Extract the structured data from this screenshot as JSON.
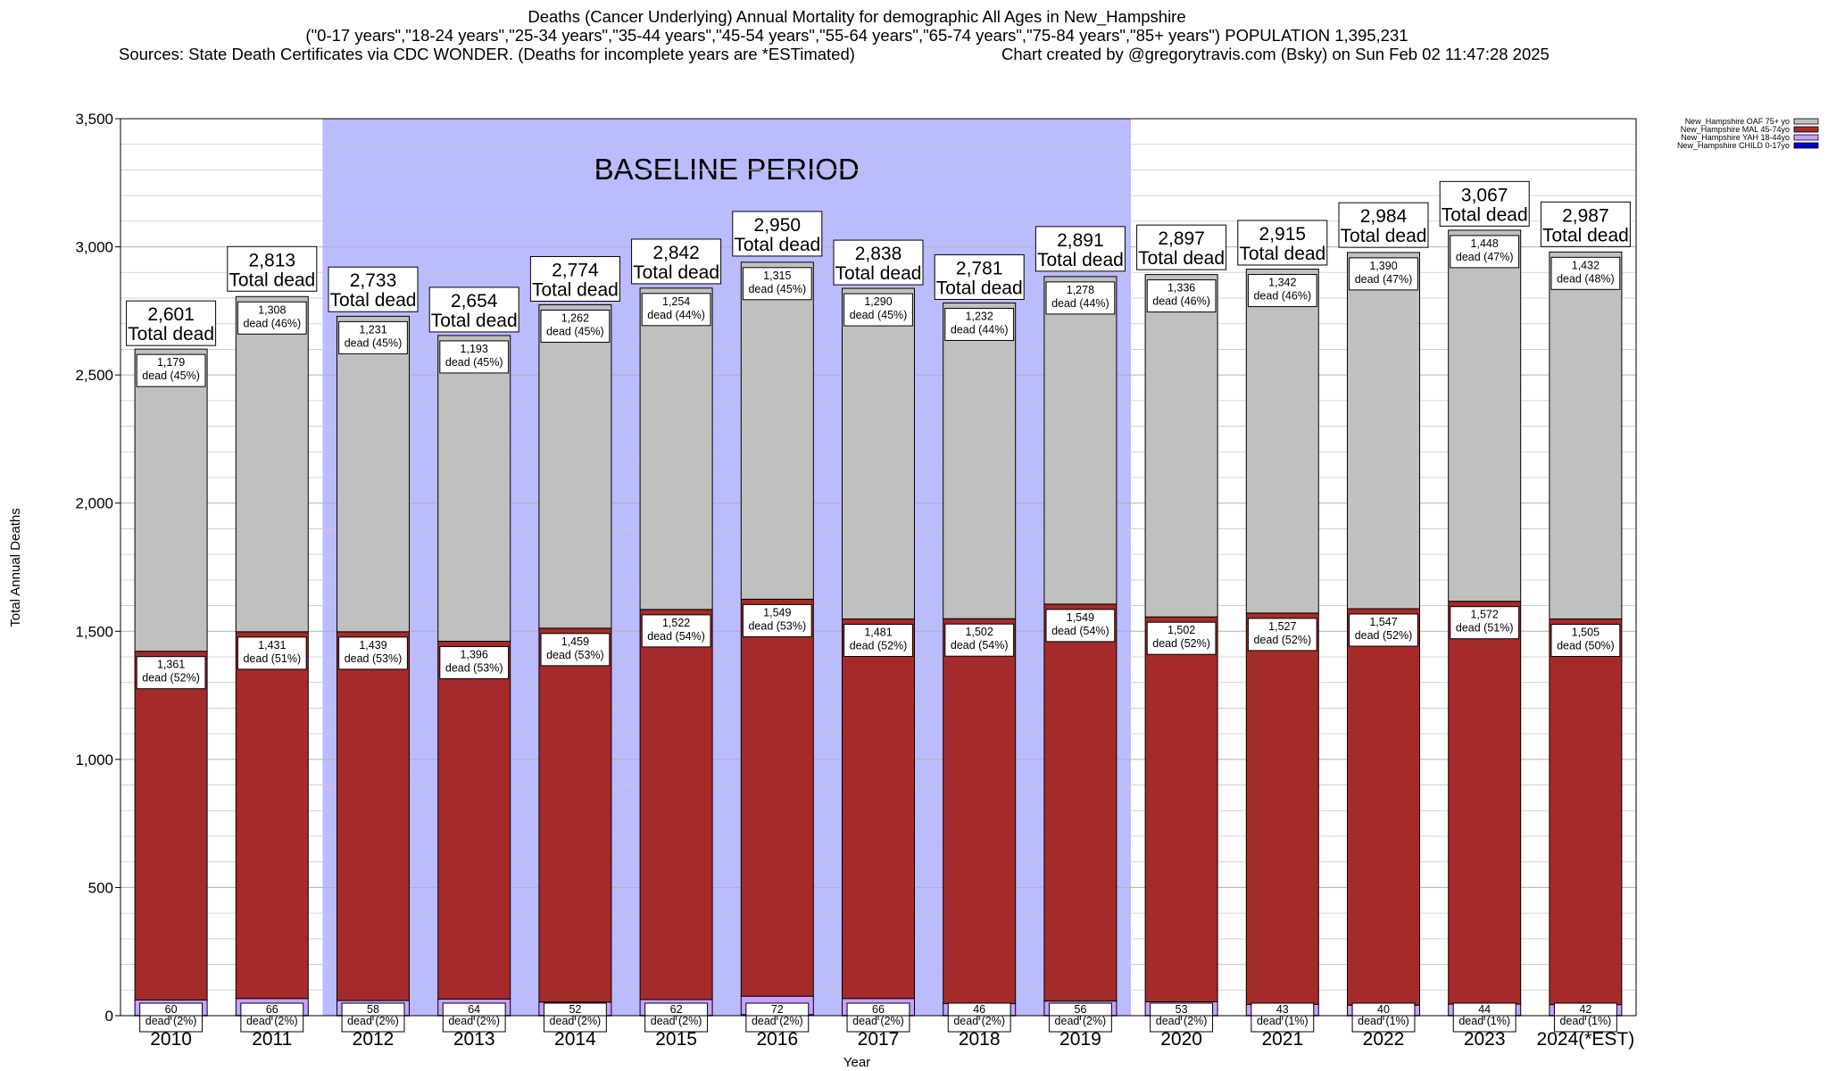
{
  "header": {
    "line1": "Deaths (Cancer Underlying) Annual Mortality for demographic All Ages in New_Hampshire",
    "line2": "(\"0-17 years\",\"18-24 years\",\"25-34 years\",\"35-44 years\",\"45-54 years\",\"55-64 years\",\"65-74 years\",\"75-84 years\",\"85+ years\") POPULATION 1,395,231",
    "line3_left": "Sources: State Death Certificates via CDC WONDER. (Deaths for incomplete years are *ESTimated)",
    "line3_right": "Chart created by @gregorytravis.com (Bsky) on Sun Feb 02 11:47:28 2025"
  },
  "colors": {
    "oaf": "#c0c0c0",
    "mal": "#a52a2a",
    "yah": "#c8a0ff",
    "child": "#0000cc",
    "baseline": "#bbbbff",
    "grid": "#c8c8c8"
  },
  "chart_data": {
    "type": "bar",
    "stacked": true,
    "title": "Deaths (Cancer Underlying) Annual Mortality for demographic All Ages in New_Hampshire",
    "xlabel": "Year",
    "ylabel": "Total Annual Deaths",
    "ylim": [
      0,
      3500
    ],
    "yticks": [
      0,
      500,
      1000,
      1500,
      2000,
      2500,
      3000,
      3500
    ],
    "ytick_labels": [
      "0",
      "500",
      "1,000",
      "1,500",
      "2,000",
      "2,500",
      "3,000",
      "3,500"
    ],
    "grid": true,
    "legend_position": "top-right",
    "categories": [
      "2010",
      "2011",
      "2012",
      "2013",
      "2014",
      "2015",
      "2016",
      "2017",
      "2018",
      "2019",
      "2020",
      "2021",
      "2022",
      "2023",
      "2024(*EST)"
    ],
    "baseline_label": "BASELINE PERIOD",
    "baseline_start_index": 2,
    "baseline_end_index": 9,
    "total_word": "Total dead",
    "dead_word": "dead",
    "series": [
      {
        "name": "New_Hampshire CHILD 0-17yo",
        "key": "child",
        "values": [
          1,
          1,
          1,
          1,
          1,
          1,
          4,
          1,
          1,
          1,
          1,
          1,
          1,
          1,
          1
        ]
      },
      {
        "name": "New_Hampshire YAH 18-44yo",
        "key": "yah",
        "values": [
          60,
          66,
          58,
          64,
          52,
          62,
          72,
          66,
          46,
          56,
          53,
          43,
          40,
          44,
          42
        ],
        "pct": [
          "(2%)",
          "(2%)",
          "(2%)",
          "(2%)",
          "(2%)",
          "(2%)",
          "(2%)",
          "(2%)",
          "(2%)",
          "(2%)",
          "(2%)",
          "(1%)",
          "(1%)",
          "(1%)",
          "(1%)"
        ],
        "labels": [
          "60",
          "66",
          "58",
          "64",
          "52",
          "62",
          "72",
          "66",
          "46",
          "56",
          "53",
          "43",
          "40",
          "44",
          "42"
        ]
      },
      {
        "name": "New_Hampshire MAL 45-74yo",
        "key": "mal",
        "values": [
          1361,
          1431,
          1439,
          1396,
          1459,
          1522,
          1549,
          1481,
          1502,
          1549,
          1502,
          1527,
          1547,
          1572,
          1505
        ],
        "pct": [
          "(52%)",
          "(51%)",
          "(53%)",
          "(53%)",
          "(53%)",
          "(54%)",
          "(53%)",
          "(52%)",
          "(54%)",
          "(54%)",
          "(52%)",
          "(52%)",
          "(52%)",
          "(51%)",
          "(50%)"
        ],
        "labels": [
          "1,361",
          "1,431",
          "1,439",
          "1,396",
          "1,459",
          "1,522",
          "1,549",
          "1,481",
          "1,502",
          "1,549",
          "1,502",
          "1,527",
          "1,547",
          "1,572",
          "1,505"
        ]
      },
      {
        "name": "New_Hampshire OAF 75+ yo",
        "key": "oaf",
        "values": [
          1179,
          1308,
          1231,
          1193,
          1262,
          1254,
          1315,
          1290,
          1232,
          1278,
          1336,
          1342,
          1390,
          1448,
          1432
        ],
        "pct": [
          "(45%)",
          "(46%)",
          "(45%)",
          "(45%)",
          "(45%)",
          "(44%)",
          "(45%)",
          "(45%)",
          "(44%)",
          "(44%)",
          "(46%)",
          "(46%)",
          "(47%)",
          "(47%)",
          "(48%)"
        ],
        "labels": [
          "1,179",
          "1,308",
          "1,231",
          "1,193",
          "1,262",
          "1,254",
          "1,315",
          "1,290",
          "1,232",
          "1,278",
          "1,336",
          "1,342",
          "1,390",
          "1,448",
          "1,432"
        ]
      }
    ],
    "totals": [
      2601,
      2813,
      2733,
      2654,
      2774,
      2842,
      2950,
      2838,
      2781,
      2891,
      2897,
      2915,
      2984,
      3067,
      2987
    ],
    "total_labels": [
      "2,601",
      "2,813",
      "2,733",
      "2,654",
      "2,774",
      "2,842",
      "2,950",
      "2,838",
      "2,781",
      "2,891",
      "2,897",
      "2,915",
      "2,984",
      "3,067",
      "2,987"
    ],
    "legend_items": [
      "New_Hampshire OAF 75+ yo",
      "New_Hampshire MAL 45-74yo",
      "New_Hampshire YAH 18-44yo",
      "New_Hampshire CHILD 0-17yo"
    ],
    "legend_keys": [
      "oaf",
      "mal",
      "yah",
      "child"
    ]
  }
}
